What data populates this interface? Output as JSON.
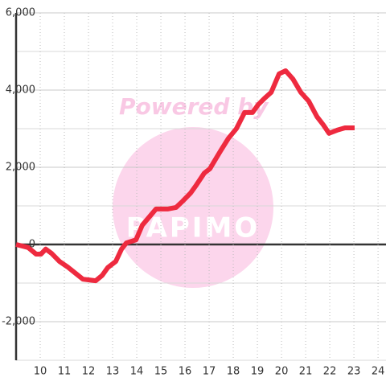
{
  "chart_data": {
    "type": "line",
    "watermark": {
      "text": "Powered by",
      "logo": "PAPIMO"
    },
    "x": [
      9,
      9.5,
      9.83,
      10.03,
      10.23,
      10.47,
      10.8,
      11.13,
      11.47,
      11.77,
      12.03,
      12.3,
      12.57,
      12.8,
      13.13,
      13.37,
      13.57,
      13.97,
      14.23,
      14.57,
      14.8,
      15.3,
      15.63,
      15.9,
      16.23,
      16.47,
      16.8,
      17.03,
      17.23,
      17.47,
      17.8,
      18.13,
      18.47,
      18.8,
      19.03,
      19.3,
      19.57,
      19.9,
      20.17,
      20.47,
      20.8,
      21.13,
      21.47,
      21.73,
      21.97,
      22.3,
      22.63,
      23.03
    ],
    "series": [
      {
        "color": "#ee2a3f",
        "values": [
          0,
          -80,
          -250,
          -250,
          -120,
          -230,
          -440,
          -580,
          -750,
          -900,
          -920,
          -940,
          -800,
          -600,
          -440,
          -120,
          40,
          120,
          500,
          750,
          920,
          920,
          960,
          1120,
          1330,
          1540,
          1850,
          1960,
          2170,
          2420,
          2750,
          3000,
          3420,
          3420,
          3620,
          3790,
          3940,
          4420,
          4500,
          4290,
          3940,
          3710,
          3310,
          3100,
          2880,
          2960,
          3020,
          3020
        ]
      }
    ],
    "xlim": [
      9,
      24.33
    ],
    "xticks": [
      10,
      11,
      12,
      13,
      14,
      15,
      16,
      17,
      18,
      19,
      20,
      21,
      22,
      23,
      24
    ],
    "ylim": [
      -3000,
      6000
    ],
    "yticks": [
      {
        "value": -2000,
        "label": "-2,000"
      },
      0,
      {
        "value": 2000,
        "label": "2,000"
      },
      {
        "value": 4000,
        "label": "4,000"
      },
      {
        "value": 6000,
        "label": "6,000"
      }
    ],
    "minor_yticks": [
      -3000,
      -1000,
      1000,
      3000,
      5000
    ],
    "grid": true
  }
}
